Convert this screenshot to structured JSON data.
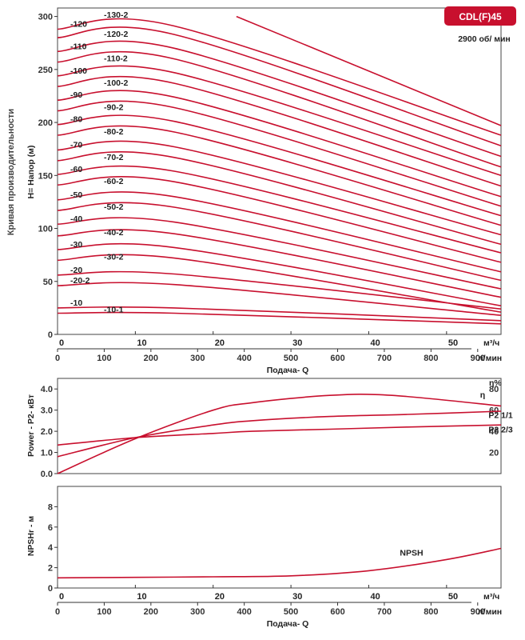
{
  "badge": {
    "title": "CDL(F)45",
    "speed": "2900 об/ мин",
    "color": "#c8102e"
  },
  "side_title": "Кривая производительности",
  "curve_color": "#c8102e",
  "chart_data": [
    {
      "type": "line",
      "name": "performance",
      "ylabel": "H= Напор (м)",
      "xlabel": "Подача- Q",
      "ylim": [
        0,
        300
      ],
      "yticks": [
        0,
        50,
        100,
        150,
        200,
        250,
        300
      ],
      "x_m3h_ticks": [
        0,
        10,
        20,
        30,
        40,
        50
      ],
      "x_m3h_unit": "м³/ч",
      "x_lmin_ticks": [
        0,
        100,
        200,
        300,
        400,
        500,
        600,
        700,
        800,
        900
      ],
      "x_lmin_unit": "л/мин",
      "xlim": [
        0,
        57
      ],
      "series": [
        {
          "name": "-130-2",
          "x": [
            23,
            57
          ],
          "y": [
            300,
            197
          ]
        },
        {
          "name": "-120",
          "x": [
            0,
            15,
            57
          ],
          "y": [
            288,
            291,
            188
          ]
        },
        {
          "name": "-120-2",
          "x": [
            0,
            15,
            57
          ],
          "y": [
            280,
            283,
            178
          ]
        },
        {
          "name": "-110",
          "x": [
            0,
            15,
            57
          ],
          "y": [
            267,
            270,
            168
          ]
        },
        {
          "name": "-110-2",
          "x": [
            0,
            15,
            57
          ],
          "y": [
            257,
            260,
            158
          ]
        },
        {
          "name": "-100",
          "x": [
            0,
            15,
            57
          ],
          "y": [
            244,
            247,
            150
          ]
        },
        {
          "name": "-100-2",
          "x": [
            0,
            15,
            57
          ],
          "y": [
            234,
            237,
            140
          ]
        },
        {
          "name": "-90",
          "x": [
            0,
            15,
            57
          ],
          "y": [
            221,
            224,
            130
          ]
        },
        {
          "name": "-90-2",
          "x": [
            0,
            15,
            57
          ],
          "y": [
            211,
            214,
            121
          ]
        },
        {
          "name": "-80",
          "x": [
            0,
            15,
            57
          ],
          "y": [
            198,
            201,
            112
          ]
        },
        {
          "name": "-80-2",
          "x": [
            0,
            15,
            57
          ],
          "y": [
            188,
            191,
            103
          ]
        },
        {
          "name": "-70",
          "x": [
            0,
            15,
            57
          ],
          "y": [
            174,
            177,
            94
          ]
        },
        {
          "name": "-70-2",
          "x": [
            0,
            15,
            57
          ],
          "y": [
            164,
            167,
            85
          ]
        },
        {
          "name": "-60",
          "x": [
            0,
            15,
            57
          ],
          "y": [
            151,
            154,
            77
          ]
        },
        {
          "name": "-60-2",
          "x": [
            0,
            15,
            57
          ],
          "y": [
            141,
            144,
            68
          ]
        },
        {
          "name": "-50",
          "x": [
            0,
            15,
            57
          ],
          "y": [
            127,
            130,
            59
          ]
        },
        {
          "name": "-50-2",
          "x": [
            0,
            15,
            57
          ],
          "y": [
            117,
            120,
            51
          ]
        },
        {
          "name": "-40",
          "x": [
            0,
            15,
            57
          ],
          "y": [
            104,
            106,
            43
          ]
        },
        {
          "name": "-40-2",
          "x": [
            0,
            15,
            57
          ],
          "y": [
            93,
            95,
            35
          ]
        },
        {
          "name": "-30",
          "x": [
            0,
            15,
            57
          ],
          "y": [
            80,
            82,
            27
          ]
        },
        {
          "name": "-30-2",
          "x": [
            0,
            15,
            57
          ],
          "y": [
            70,
            72,
            21
          ]
        },
        {
          "name": "-20",
          "x": [
            0,
            15,
            57
          ],
          "y": [
            56,
            57,
            24
          ]
        },
        {
          "name": "-20-2",
          "x": [
            0,
            15,
            57
          ],
          "y": [
            46,
            47,
            18
          ]
        },
        {
          "name": "-10",
          "x": [
            0,
            15,
            57
          ],
          "y": [
            25,
            25,
            13
          ]
        },
        {
          "name": "-10-1",
          "x": [
            0,
            15,
            57
          ],
          "y": [
            20,
            20,
            10
          ]
        }
      ]
    },
    {
      "type": "line",
      "name": "power",
      "ylabel": "Power - P2- кВт",
      "y2label": "η%",
      "ylim": [
        0,
        4.5
      ],
      "yticks": [
        0,
        1.0,
        2.0,
        3.0,
        4.0
      ],
      "y2lim": [
        0,
        90
      ],
      "y2ticks": [
        20,
        40,
        60,
        80
      ],
      "xlim": [
        0,
        57
      ],
      "series": [
        {
          "name": "η",
          "axis": "right",
          "x": [
            0,
            10,
            20,
            25,
            35,
            43,
            57
          ],
          "y": [
            0,
            33,
            60,
            67,
            74,
            74,
            64
          ]
        },
        {
          "name": "P2 1/1",
          "axis": "left",
          "x": [
            0,
            10,
            20,
            25,
            35,
            45,
            57
          ],
          "y": [
            0.8,
            1.7,
            2.3,
            2.5,
            2.7,
            2.8,
            2.95
          ]
        },
        {
          "name": "P2 2/3",
          "axis": "left",
          "x": [
            0,
            10,
            20,
            25,
            35,
            45,
            57
          ],
          "y": [
            1.35,
            1.7,
            1.9,
            2.0,
            2.1,
            2.2,
            2.3
          ]
        }
      ]
    },
    {
      "type": "line",
      "name": "npsh",
      "ylabel": "NPSHr - м",
      "xlabel": "Подача- Q",
      "ylim": [
        0,
        10
      ],
      "yticks": [
        0,
        2,
        4,
        6,
        8
      ],
      "x_m3h_ticks": [
        0,
        10,
        20,
        30,
        40,
        50
      ],
      "x_m3h_unit": "м³/ч",
      "x_lmin_ticks": [
        0,
        100,
        200,
        300,
        400,
        500,
        600,
        700,
        800,
        900
      ],
      "x_lmin_unit": "л/мин",
      "xlim": [
        0,
        57
      ],
      "series": [
        {
          "name": "NPSH",
          "x": [
            0,
            10,
            20,
            30,
            40,
            50,
            57
          ],
          "y": [
            1.0,
            1.05,
            1.1,
            1.2,
            1.7,
            2.8,
            3.9
          ]
        }
      ]
    }
  ]
}
